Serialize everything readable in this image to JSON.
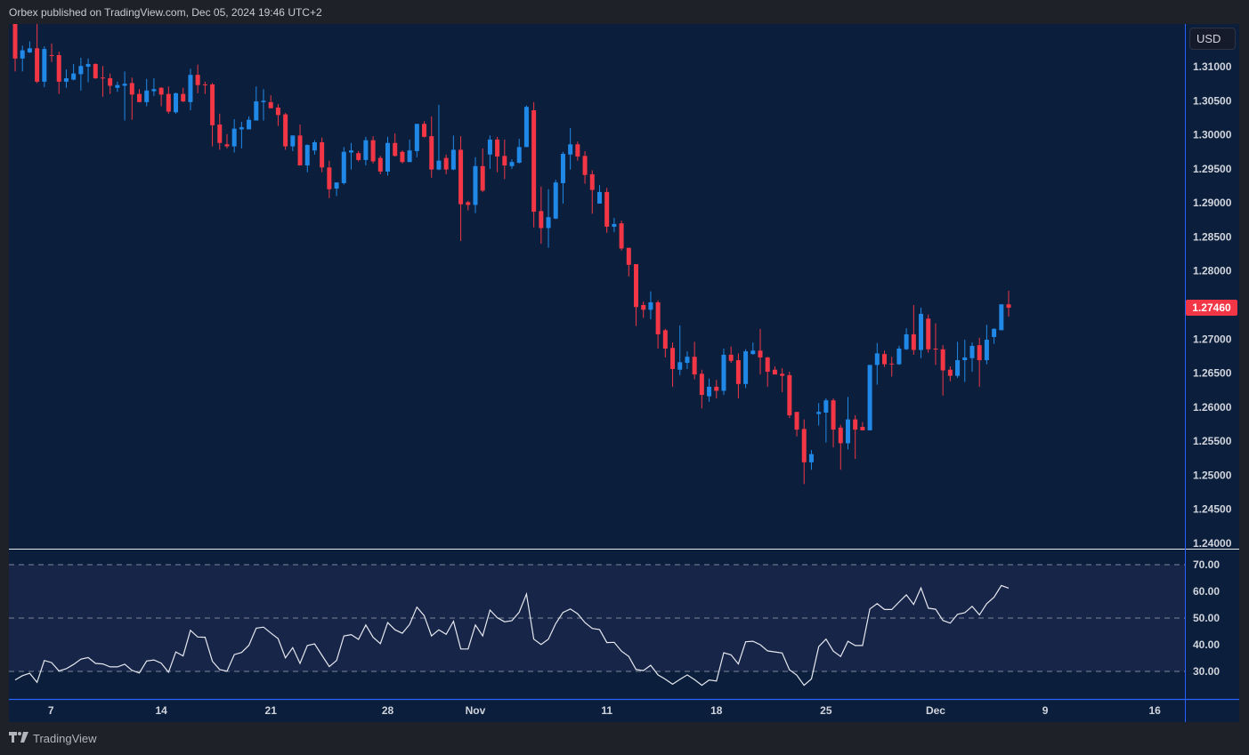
{
  "header": {
    "published": "Orbex published on TradingView.com, Dec 05, 2024 19:46 UTC+2"
  },
  "currency_button": "USD",
  "last_price": "1.27460",
  "footer": {
    "brand": "TradingView",
    "logo_mark": "TV"
  },
  "colors": {
    "up": "#2089e8",
    "down": "#f23645",
    "background": "#0b1f3c",
    "rsi_band": "#172549",
    "rsi_line": "#e6e8ee"
  },
  "chart_data": {
    "type": "candlestick",
    "title": "",
    "price_range": [
      1.24,
      1.31
    ],
    "price_ticks": [
      "1.31000",
      "1.30500",
      "1.30000",
      "1.29500",
      "1.29000",
      "1.28500",
      "1.28000",
      "1.27500",
      "1.27000",
      "1.26500",
      "1.26000",
      "1.25500",
      "1.25000",
      "1.24500",
      "1.24000"
    ],
    "price_tick_values": [
      1.31,
      1.305,
      1.3,
      1.295,
      1.29,
      1.285,
      1.28,
      1.275,
      1.27,
      1.265,
      1.26,
      1.255,
      1.25,
      1.245,
      1.24
    ],
    "hidden_price_ticks": [
      "1.27500"
    ],
    "time_labels": [
      {
        "label": "7",
        "bar": 5.9
      },
      {
        "label": "14",
        "bar": 21
      },
      {
        "label": "21",
        "bar": 36
      },
      {
        "label": "28",
        "bar": 52
      },
      {
        "label": "Nov",
        "bar": 64
      },
      {
        "label": "11",
        "bar": 82
      },
      {
        "label": "18",
        "bar": 97
      },
      {
        "label": "25",
        "bar": 112
      },
      {
        "label": "Dec",
        "bar": 127
      },
      {
        "label": "9",
        "bar": 142
      },
      {
        "label": "16",
        "bar": 157
      }
    ],
    "candles_ohlc": [
      [
        1.3169,
        1.3172,
        1.3093,
        1.3112
      ],
      [
        1.3112,
        1.3131,
        1.3093,
        1.3124
      ],
      [
        1.3121,
        1.3137,
        1.312,
        1.3127
      ],
      [
        1.3127,
        1.3163,
        1.3076,
        1.3078
      ],
      [
        1.3078,
        1.313,
        1.307,
        1.3126
      ],
      [
        1.3117,
        1.3134,
        1.3107,
        1.3116
      ],
      [
        1.3117,
        1.3122,
        1.306,
        1.3078
      ],
      [
        1.3078,
        1.3096,
        1.3069,
        1.3083
      ],
      [
        1.3081,
        1.3104,
        1.308,
        1.309
      ],
      [
        1.3089,
        1.3113,
        1.3065,
        1.3101
      ],
      [
        1.31,
        1.3112,
        1.3077,
        1.3104
      ],
      [
        1.3104,
        1.3105,
        1.3082,
        1.3083
      ],
      [
        1.3084,
        1.3101,
        1.3056,
        1.3083
      ],
      [
        1.3083,
        1.309,
        1.306,
        1.3072
      ],
      [
        1.3069,
        1.3078,
        1.3063,
        1.3073
      ],
      [
        1.3072,
        1.3093,
        1.3021,
        1.3075
      ],
      [
        1.3076,
        1.3084,
        1.3022,
        1.3059
      ],
      [
        1.306,
        1.3067,
        1.3048,
        1.3048
      ],
      [
        1.3048,
        1.3082,
        1.3042,
        1.3065
      ],
      [
        1.3064,
        1.3083,
        1.3057,
        1.3067
      ],
      [
        1.3069,
        1.307,
        1.3042,
        1.3059
      ],
      [
        1.306,
        1.3071,
        1.3031,
        1.3034
      ],
      [
        1.3033,
        1.3062,
        1.3031,
        1.3061
      ],
      [
        1.306,
        1.3069,
        1.3048,
        1.3049
      ],
      [
        1.3048,
        1.3097,
        1.3036,
        1.3088
      ],
      [
        1.3088,
        1.3103,
        1.3061,
        1.3073
      ],
      [
        1.3074,
        1.3078,
        1.306,
        1.3073
      ],
      [
        1.3074,
        1.3076,
        1.2983,
        1.3014
      ],
      [
        1.3015,
        1.3031,
        1.2978,
        1.2988
      ],
      [
        1.2986,
        1.3001,
        1.298,
        1.2983
      ],
      [
        1.2983,
        1.3023,
        1.2974,
        1.3009
      ],
      [
        1.3008,
        1.3019,
        1.298,
        1.3011
      ],
      [
        1.3008,
        1.3027,
        1.3008,
        1.3022
      ],
      [
        1.3021,
        1.3071,
        1.3021,
        1.3049
      ],
      [
        1.3048,
        1.3067,
        1.3021,
        1.305
      ],
      [
        1.3048,
        1.3058,
        1.3039,
        1.3039
      ],
      [
        1.304,
        1.3045,
        1.3013,
        1.3029
      ],
      [
        1.303,
        1.3032,
        1.2978,
        1.2983
      ],
      [
        1.2983,
        1.2999,
        1.2976,
        1.2999
      ],
      [
        1.2999,
        1.3015,
        1.2955,
        1.2955
      ],
      [
        1.2955,
        1.2986,
        1.2945,
        1.2985
      ],
      [
        1.2977,
        1.2992,
        1.2971,
        1.2989
      ],
      [
        1.2989,
        1.2996,
        1.2945,
        1.2952
      ],
      [
        1.2952,
        1.2962,
        1.2907,
        1.292
      ],
      [
        1.2921,
        1.293,
        1.291,
        1.293
      ],
      [
        1.2929,
        1.2982,
        1.2927,
        1.2975
      ],
      [
        1.2974,
        1.2988,
        1.2949,
        1.2977
      ],
      [
        1.2973,
        1.2976,
        1.2961,
        1.2963
      ],
      [
        1.2963,
        1.2997,
        1.2955,
        1.2992
      ],
      [
        1.2992,
        1.2998,
        1.2958,
        1.2961
      ],
      [
        1.2966,
        1.2969,
        1.2942,
        1.2946
      ],
      [
        1.2946,
        1.2997,
        1.294,
        1.2988
      ],
      [
        1.2988,
        1.3002,
        1.2968,
        1.2969
      ],
      [
        1.2975,
        1.2977,
        1.2958,
        1.296
      ],
      [
        1.296,
        1.2993,
        1.296,
        1.2977
      ],
      [
        1.2976,
        1.3016,
        1.2967,
        1.3016
      ],
      [
        1.3016,
        1.302,
        1.2996,
        1.2997
      ],
      [
        1.2998,
        1.3027,
        1.2937,
        1.2949
      ],
      [
        1.2949,
        1.3044,
        1.2948,
        1.2962
      ],
      [
        1.2966,
        1.2971,
        1.2942,
        1.2949
      ],
      [
        1.2949,
        1.2999,
        1.2948,
        1.2978
      ],
      [
        1.2978,
        1.2998,
        1.2844,
        1.2898
      ],
      [
        1.2901,
        1.2903,
        1.2889,
        1.2897
      ],
      [
        1.2897,
        1.2967,
        1.2885,
        1.2954
      ],
      [
        1.2954,
        1.298,
        1.2916,
        1.2918
      ],
      [
        1.2971,
        1.2999,
        1.295,
        1.2993
      ],
      [
        1.2993,
        1.2997,
        1.2945,
        1.2968
      ],
      [
        1.2969,
        1.2993,
        1.2935,
        1.2955
      ],
      [
        1.2954,
        1.2964,
        1.295,
        1.296
      ],
      [
        1.2959,
        1.2994,
        1.2958,
        1.2982
      ],
      [
        1.2982,
        1.3043,
        1.2982,
        1.3041
      ],
      [
        1.3036,
        1.3048,
        1.2864,
        1.2887
      ],
      [
        1.2888,
        1.2924,
        1.284,
        1.2863
      ],
      [
        1.2863,
        1.292,
        1.2834,
        1.2879
      ],
      [
        1.2877,
        1.2934,
        1.2876,
        1.293
      ],
      [
        1.2929,
        1.2975,
        1.2899,
        1.2972
      ],
      [
        1.2971,
        1.301,
        1.2949,
        1.2986
      ],
      [
        1.2986,
        1.299,
        1.2962,
        1.2968
      ],
      [
        1.2969,
        1.2976,
        1.2928,
        1.2941
      ],
      [
        1.2942,
        1.2948,
        1.2884,
        1.2919
      ],
      [
        1.2899,
        1.2926,
        1.2899,
        1.2916
      ],
      [
        1.2916,
        1.2922,
        1.2856,
        1.2865
      ],
      [
        1.2865,
        1.2878,
        1.2857,
        1.2869
      ],
      [
        1.287,
        1.2874,
        1.283,
        1.2833
      ],
      [
        1.2834,
        1.2834,
        1.2792,
        1.2809
      ],
      [
        1.281,
        1.281,
        1.2719,
        1.2747
      ],
      [
        1.275,
        1.2755,
        1.2731,
        1.2743
      ],
      [
        1.2743,
        1.277,
        1.2729,
        1.2754
      ],
      [
        1.2754,
        1.2757,
        1.2686,
        1.2707
      ],
      [
        1.2713,
        1.2715,
        1.2673,
        1.2686
      ],
      [
        1.2687,
        1.2695,
        1.263,
        1.2656
      ],
      [
        1.2655,
        1.272,
        1.2647,
        1.2666
      ],
      [
        1.2665,
        1.2682,
        1.2656,
        1.2674
      ],
      [
        1.2674,
        1.2696,
        1.2641,
        1.2648
      ],
      [
        1.2649,
        1.2655,
        1.2598,
        1.2618
      ],
      [
        1.2616,
        1.2642,
        1.2608,
        1.263
      ],
      [
        1.263,
        1.264,
        1.2613,
        1.2624
      ],
      [
        1.2624,
        1.2686,
        1.2618,
        1.2677
      ],
      [
        1.2677,
        1.2689,
        1.2665,
        1.2668
      ],
      [
        1.2669,
        1.2679,
        1.2613,
        1.2634
      ],
      [
        1.2634,
        1.2685,
        1.2628,
        1.2682
      ],
      [
        1.2678,
        1.2695,
        1.2677,
        1.2683
      ],
      [
        1.2683,
        1.2715,
        1.2648,
        1.2673
      ],
      [
        1.2673,
        1.2674,
        1.263,
        1.2652
      ],
      [
        1.2655,
        1.266,
        1.2648,
        1.2648
      ],
      [
        1.2649,
        1.2657,
        1.2622,
        1.2646
      ],
      [
        1.2647,
        1.2652,
        1.2584,
        1.2588
      ],
      [
        1.2593,
        1.2593,
        1.2557,
        1.2567
      ],
      [
        1.2568,
        1.2582,
        1.2487,
        1.2519
      ],
      [
        1.2519,
        1.2537,
        1.2508,
        1.2531
      ],
      [
        1.259,
        1.2606,
        1.2573,
        1.2593
      ],
      [
        1.2592,
        1.2613,
        1.2548,
        1.261
      ],
      [
        1.261,
        1.2613,
        1.2541,
        1.2567
      ],
      [
        1.257,
        1.2574,
        1.2508,
        1.2547
      ],
      [
        1.2547,
        1.2615,
        1.2538,
        1.2582
      ],
      [
        1.2582,
        1.2588,
        1.2524,
        1.2567
      ],
      [
        1.2571,
        1.2578,
        1.2566,
        1.2566
      ],
      [
        1.2566,
        1.2662,
        1.2566,
        1.2662
      ],
      [
        1.2662,
        1.2694,
        1.2633,
        1.2679
      ],
      [
        1.2678,
        1.2683,
        1.2659,
        1.2663
      ],
      [
        1.2664,
        1.2674,
        1.2645,
        1.2663
      ],
      [
        1.2663,
        1.269,
        1.2662,
        1.2686
      ],
      [
        1.2685,
        1.2716,
        1.2684,
        1.2707
      ],
      [
        1.2707,
        1.275,
        1.2677,
        1.2684
      ],
      [
        1.2684,
        1.2746,
        1.2672,
        1.2737
      ],
      [
        1.273,
        1.2736,
        1.268,
        1.2685
      ],
      [
        1.2686,
        1.2723,
        1.2662,
        1.2685
      ],
      [
        1.2685,
        1.2691,
        1.2617,
        1.2654
      ],
      [
        1.2655,
        1.266,
        1.2638,
        1.2646
      ],
      [
        1.2646,
        1.2696,
        1.2643,
        1.2669
      ],
      [
        1.2669,
        1.2699,
        1.2637,
        1.2673
      ],
      [
        1.2672,
        1.2695,
        1.2652,
        1.269
      ],
      [
        1.2691,
        1.2702,
        1.263,
        1.2669
      ],
      [
        1.2669,
        1.2721,
        1.2663,
        1.2699
      ],
      [
        1.2703,
        1.2716,
        1.2693,
        1.2715
      ],
      [
        1.2713,
        1.2751,
        1.2713,
        1.2751
      ],
      [
        1.2751,
        1.2771,
        1.2733,
        1.2746
      ]
    ],
    "rsi": {
      "range": [
        20,
        76
      ],
      "levels": [
        70,
        50,
        30
      ],
      "ticks": [
        "70.00",
        "60.00",
        "50.00",
        "40.00",
        "30.00"
      ],
      "tick_values": [
        70,
        60,
        50,
        40,
        30
      ],
      "values": [
        26.8,
        28.4,
        29.3,
        25.9,
        34.1,
        33.3,
        30.2,
        31.0,
        32.6,
        34.6,
        35.2,
        33.0,
        32.8,
        31.7,
        31.7,
        32.7,
        30.4,
        29.4,
        33.9,
        34.3,
        33.1,
        29.7,
        37.3,
        35.8,
        45.4,
        42.9,
        42.8,
        33.8,
        30.7,
        30.1,
        36.3,
        37.1,
        39.8,
        46.2,
        46.6,
        44.4,
        42.3,
        35.1,
        38.9,
        33.0,
        39.7,
        40.3,
        36.0,
        31.8,
        34.1,
        43.3,
        43.8,
        42.0,
        47.4,
        42.8,
        40.4,
        48.3,
        45.6,
        44.3,
        47.6,
        54.1,
        50.9,
        43.3,
        45.6,
        43.9,
        48.8,
        38.4,
        38.4,
        47.4,
        43.3,
        53.0,
        50.1,
        48.6,
        49.0,
        52.2,
        59.0,
        42.1,
        40.1,
        42.1,
        47.9,
        52.1,
        53.4,
        51.6,
        48.3,
        46.1,
        45.7,
        40.8,
        40.9,
        37.6,
        35.6,
        30.7,
        30.3,
        32.3,
        28.7,
        27.1,
        25.2,
        27.0,
        28.7,
        26.9,
        24.8,
        26.8,
        26.4,
        37.0,
        36.2,
        32.8,
        41.1,
        41.3,
        40.0,
        37.7,
        37.3,
        36.9,
        30.6,
        28.6,
        24.8,
        27.2,
        39.3,
        42.1,
        37.6,
        35.6,
        41.3,
        39.7,
        39.7,
        53.4,
        55.4,
        53.2,
        53.2,
        56.0,
        58.7,
        55.1,
        61.3,
        53.7,
        53.3,
        49.1,
        48.1,
        51.4,
        52.0,
        54.4,
        51.2,
        55.4,
        57.8,
        62.2,
        61.2
      ]
    }
  }
}
